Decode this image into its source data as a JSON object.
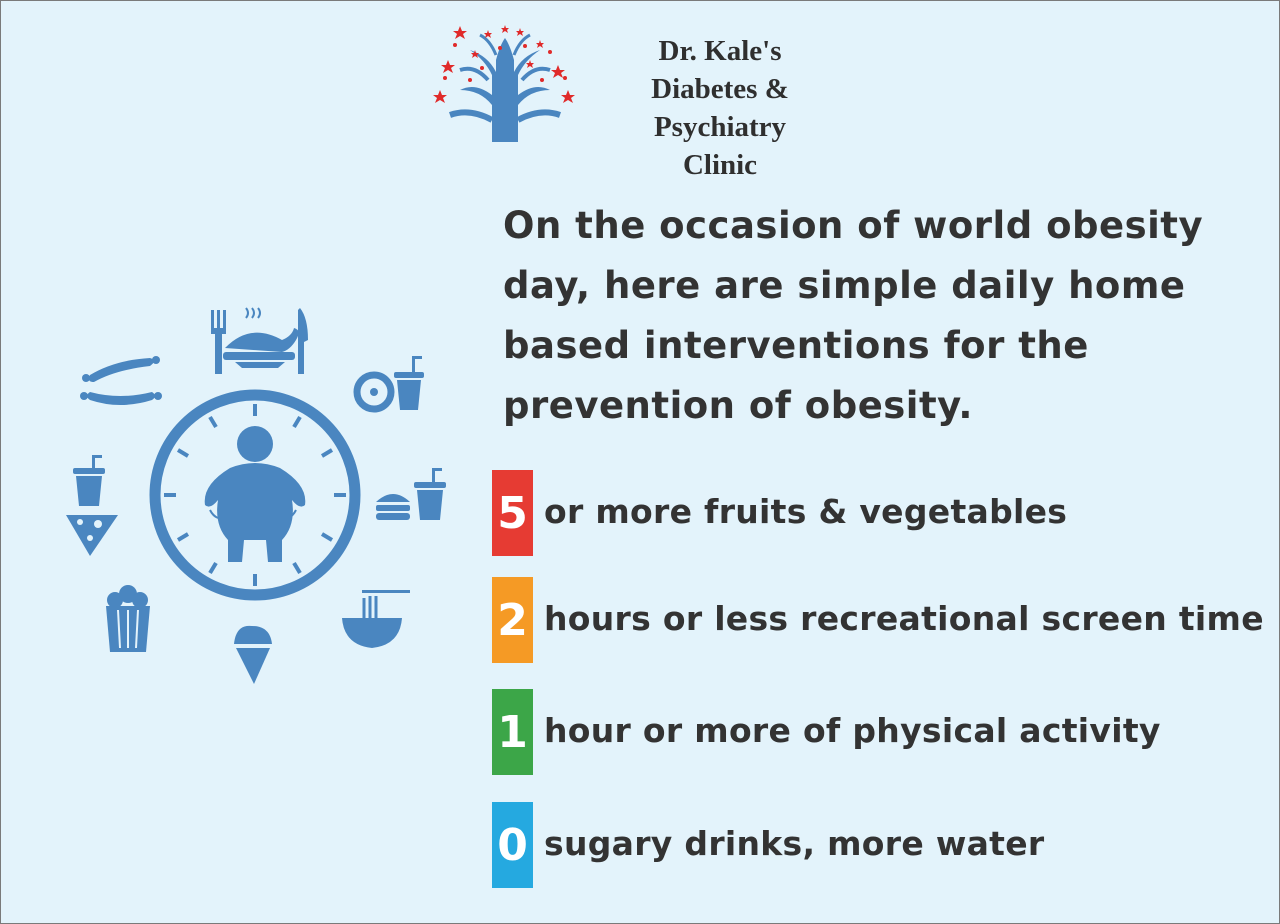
{
  "clinic": {
    "line1": "Dr. Kale's",
    "line2": "Diabetes & Psychiatry",
    "line3": "Clinic"
  },
  "intro": "On the occasion of world obesity day, here are simple daily home based interventions for the prevention of obesity.",
  "tips": [
    {
      "number": "5",
      "text": "or more fruits & vegetables",
      "color": "#e63b33"
    },
    {
      "number": "2",
      "text": "hours or less recreational screen time",
      "color": "#f59a25"
    },
    {
      "number": "1",
      "text": "hour or more of physical activity",
      "color": "#3ca648"
    },
    {
      "number": "0",
      "text": "sugary drinks, more water",
      "color": "#25a9e0"
    }
  ],
  "colors": {
    "background": "#e3f3fb",
    "icon_blue": "#4a86c0",
    "star_red": "#e02a2a",
    "text_dark": "#333333"
  },
  "icons": [
    "tree-hands-logo",
    "clock-icon",
    "obese-person-icon",
    "fork-icon",
    "roast-chicken-icon",
    "knife-icon",
    "sausage-icon",
    "donut-icon",
    "soda-cup-icon",
    "burger-icon",
    "pizza-icon",
    "popcorn-icon",
    "ice-cream-icon",
    "noodle-bowl-icon"
  ]
}
